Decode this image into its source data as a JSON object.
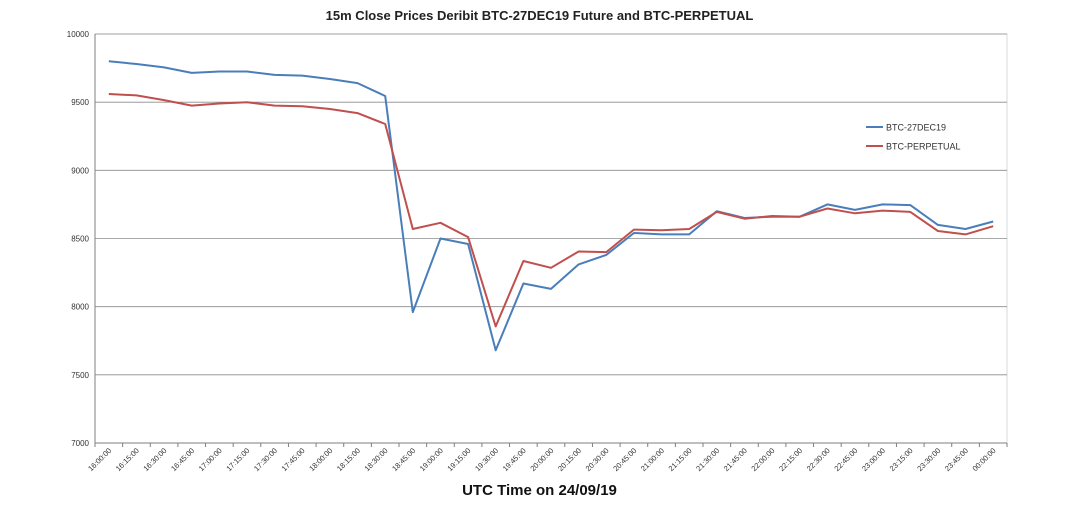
{
  "chart_data": {
    "type": "line",
    "title": "15m Close Prices Deribit BTC-27DEC19 Future and BTC-PERPETUAL",
    "xlabel": "UTC Time on 24/09/19",
    "ylabel": "",
    "ylim": [
      7000,
      10000
    ],
    "yticks": [
      7000,
      7500,
      8000,
      8500,
      9000,
      9500,
      10000
    ],
    "grid": true,
    "legend_position": "right",
    "categories": [
      "16:00:00",
      "16:15:00",
      "16:30:00",
      "16:45:00",
      "17:00:00",
      "17:15:00",
      "17:30:00",
      "17:45:00",
      "18:00:00",
      "18:15:00",
      "18:30:00",
      "18:45:00",
      "19:00:00",
      "19:15:00",
      "19:30:00",
      "19:45:00",
      "20:00:00",
      "20:15:00",
      "20:30:00",
      "20:45:00",
      "21:00:00",
      "21:15:00",
      "21:30:00",
      "21:45:00",
      "22:00:00",
      "22:15:00",
      "22:30:00",
      "22:45:00",
      "23:00:00",
      "23:15:00",
      "23:30:00",
      "23:45:00",
      "00:00:00"
    ],
    "series": [
      {
        "name": "BTC-27DEC19",
        "color": "#4a7eba",
        "values": [
          9800,
          9780,
          9755,
          9715,
          9725,
          9725,
          9700,
          9695,
          9670,
          9640,
          9545,
          7960,
          8500,
          8460,
          7680,
          8170,
          8130,
          8310,
          8380,
          8540,
          8530,
          8530,
          8700,
          8650,
          8660,
          8660,
          8750,
          8710,
          8750,
          8745,
          8600,
          8570,
          8625
        ]
      },
      {
        "name": "BTC-PERPETUAL",
        "color": "#c0504d",
        "values": [
          9560,
          9550,
          9515,
          9475,
          9490,
          9500,
          9475,
          9470,
          9450,
          9420,
          9340,
          8570,
          8615,
          8510,
          7855,
          8335,
          8285,
          8405,
          8400,
          8565,
          8560,
          8570,
          8695,
          8645,
          8665,
          8660,
          8720,
          8685,
          8705,
          8695,
          8555,
          8530,
          8590
        ]
      }
    ]
  }
}
